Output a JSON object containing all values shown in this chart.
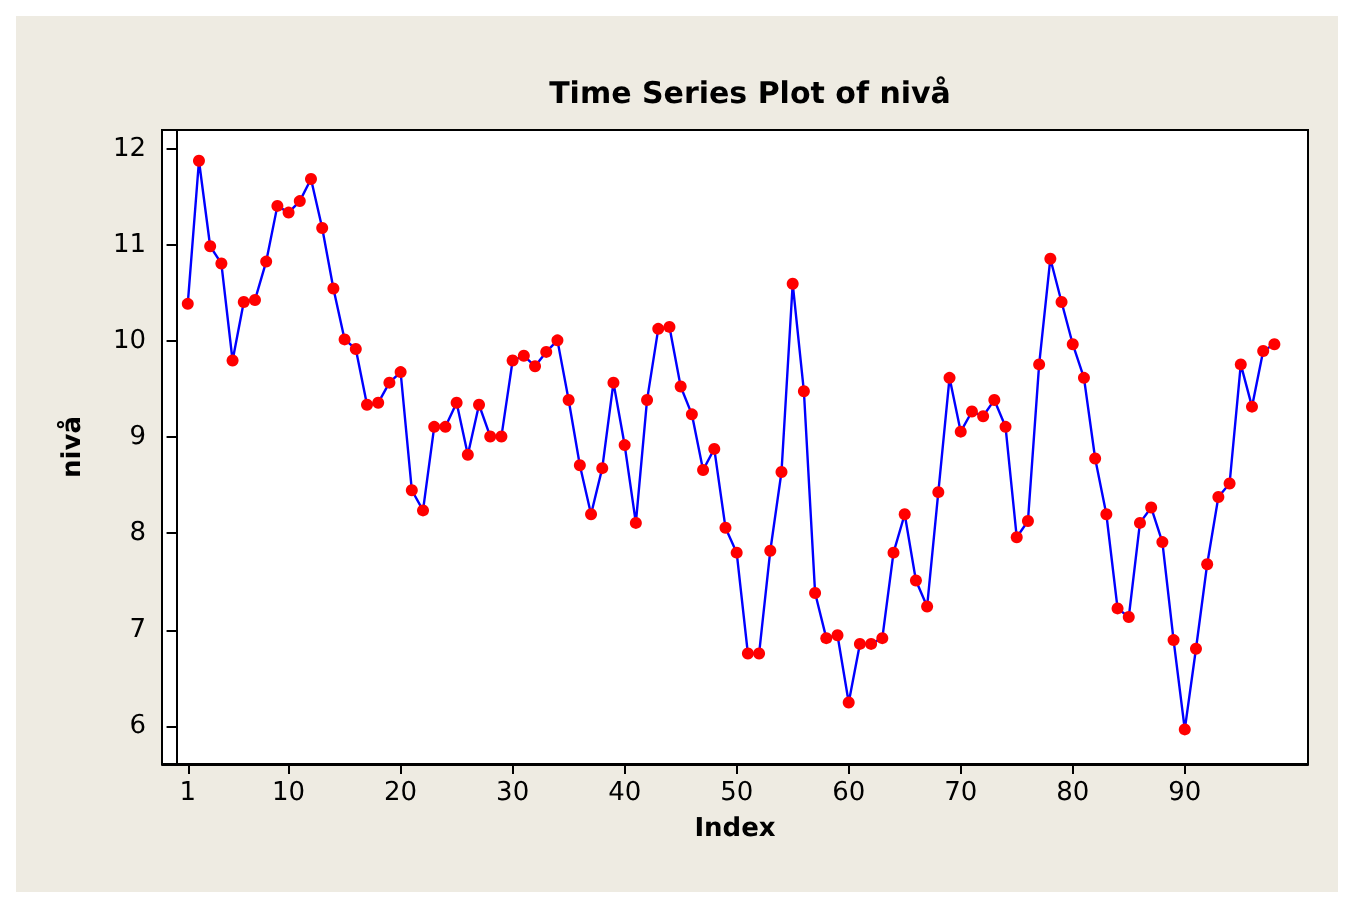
{
  "chart_data": {
    "type": "line",
    "title": "Time Series Plot of nivå",
    "xlabel": "Index",
    "ylabel": "nivå",
    "x": [
      1,
      2,
      3,
      4,
      5,
      6,
      7,
      8,
      9,
      10,
      11,
      12,
      13,
      14,
      15,
      16,
      17,
      18,
      19,
      20,
      21,
      22,
      23,
      24,
      25,
      26,
      27,
      28,
      29,
      30,
      31,
      32,
      33,
      34,
      35,
      36,
      37,
      38,
      39,
      40,
      41,
      42,
      43,
      44,
      45,
      46,
      47,
      48,
      49,
      50,
      51,
      52,
      53,
      54,
      55,
      56,
      57,
      58,
      59,
      60,
      61,
      62,
      63,
      64,
      65,
      66,
      67,
      68,
      69,
      70,
      71,
      72,
      73,
      74,
      75,
      76,
      77,
      78,
      79,
      80,
      81,
      82,
      83,
      84,
      85,
      86,
      87,
      88,
      89,
      90,
      91,
      92,
      93,
      94,
      95,
      96,
      97,
      98
    ],
    "series": [
      {
        "color": "#0000ff",
        "colors": [
          "#ff0000",
          "#ff0000",
          "#ff0000",
          "#ff0000",
          "#ff0000",
          "#ff0000",
          "#ff0000",
          "#ff0000",
          "#ff0000",
          "#ff0000",
          "#ff0000",
          "#ff0000",
          "#ff0000",
          "#ff0000",
          "#ff0000",
          "#ff0000",
          "#ff0000",
          "#ff0000",
          "#ff0000",
          "#ff0000",
          "#ff0000",
          "#ff0000",
          "#ff0000",
          "#ff0000",
          "#ff0000",
          "#ff0000",
          "#ff0000",
          "#ff0000",
          "#ff0000",
          "#ff0000",
          "#ff0000",
          "#ff0000",
          "#ff0000",
          "#ff0000",
          "#ff0000",
          "#ff0000",
          "#ff0000",
          "#ff0000",
          "#ff0000",
          "#ff0000",
          "#ff0000",
          "#ff0000",
          "#ff0000",
          "#ff0000",
          "#ff0000",
          "#ff0000",
          "#ff0000",
          "#ff0000",
          "#ff0000",
          "#ff0000",
          "#ff0000",
          "#ff0000",
          "#ff0000",
          "#ff0000",
          "#ff0000",
          "#ff0000",
          "#ff0000",
          "#ff0000",
          "#ff0000",
          "#ff0000",
          "#ff0000",
          "#ff0000",
          "#ff0000",
          "#ff0000",
          "#ff0000",
          "#ff0000",
          "#ff0000",
          "#ff0000",
          "#ff0000",
          "#ff0000",
          "#ff0000",
          "#ff0000",
          "#ff0000",
          "#ff0000",
          "#ff0000",
          "#ff0000",
          "#ff0000",
          "#ff0000",
          "#ff0000",
          "#ff0000",
          "#ff0000",
          "#ff0000",
          "#ff0000",
          "#ff0000",
          "#ff0000",
          "#ff0000",
          "#ff0000",
          "#ff0000",
          "#ff0000",
          "#ff0000",
          "#ff0000",
          "#ff0000",
          "#ff0000",
          "#ff0000",
          "#ff0000",
          "#ff0000",
          "#ff0000",
          "#ff0000"
        ],
        "values": [
          10.39,
          11.88,
          10.99,
          10.81,
          9.8,
          10.41,
          10.43,
          10.83,
          11.41,
          11.34,
          11.46,
          11.69,
          11.18,
          10.55,
          10.02,
          9.92,
          9.34,
          9.36,
          9.57,
          9.68,
          8.45,
          8.24,
          9.11,
          9.11,
          9.36,
          8.82,
          9.34,
          9.01,
          9.01,
          9.8,
          9.85,
          9.74,
          9.89,
          10.01,
          9.39,
          8.71,
          8.2,
          8.68,
          9.57,
          8.92,
          8.11,
          9.39,
          10.13,
          10.15,
          9.53,
          9.24,
          8.66,
          8.88,
          8.06,
          7.8,
          6.75,
          6.75,
          7.82,
          8.64,
          10.6,
          9.48,
          7.38,
          6.91,
          6.94,
          6.24,
          6.85,
          6.85,
          6.91,
          7.8,
          8.2,
          7.51,
          7.24,
          8.43,
          9.62,
          9.06,
          9.27,
          9.22,
          9.39,
          9.11,
          7.96,
          8.13,
          9.76,
          10.86,
          10.41,
          9.97,
          9.62,
          8.78,
          8.2,
          7.22,
          7.13,
          8.11,
          8.27,
          7.91,
          6.89,
          5.96,
          6.8,
          7.68,
          8.38,
          8.52,
          9.76,
          9.32,
          9.9,
          9.97
        ]
      }
    ],
    "xlim": [
      -1.3,
      101
    ],
    "xticks": [
      1,
      10,
      20,
      30,
      40,
      50,
      60,
      70,
      80,
      90
    ],
    "ylim": [
      5.6,
      12.2
    ],
    "yticks": [
      6,
      7,
      8,
      9,
      10,
      11,
      12
    ],
    "grid": false,
    "marker": "circle",
    "line_style": "solid"
  }
}
